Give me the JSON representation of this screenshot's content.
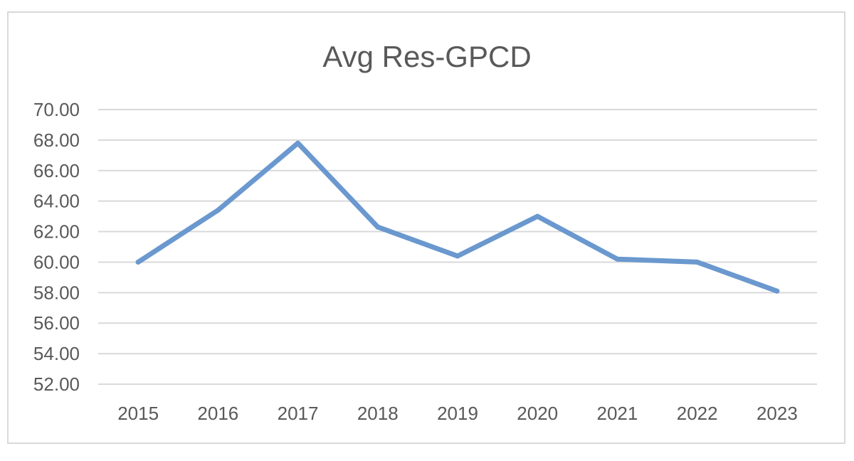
{
  "chart_data": {
    "type": "line",
    "title": "Avg Res-GPCD",
    "xlabel": "",
    "ylabel": "",
    "categories": [
      "2015",
      "2016",
      "2017",
      "2018",
      "2019",
      "2020",
      "2021",
      "2022",
      "2023"
    ],
    "series": [
      {
        "values": [
          60.0,
          63.4,
          67.8,
          62.3,
          60.4,
          63.0,
          60.2,
          60.0,
          58.1
        ],
        "color": "#6a98cf"
      }
    ],
    "ylim": [
      52,
      70
    ],
    "y_ticks": [
      "52.00",
      "54.00",
      "56.00",
      "58.00",
      "60.00",
      "62.00",
      "64.00",
      "66.00",
      "68.00",
      "70.00"
    ],
    "grid": true,
    "legend": "none"
  }
}
